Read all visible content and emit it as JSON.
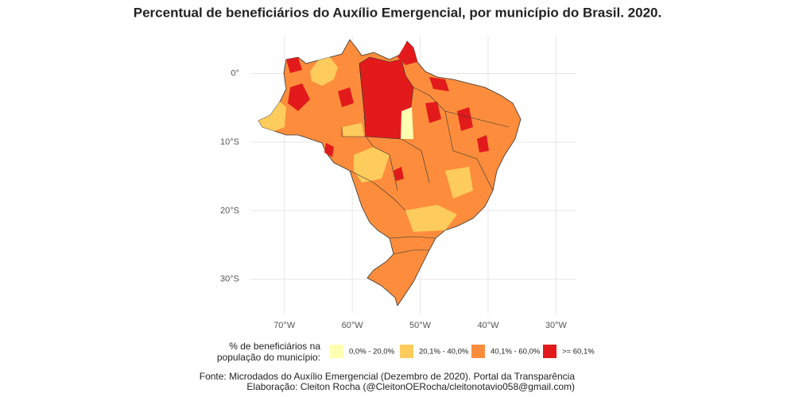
{
  "map": {
    "title": "Percentual de beneficiários do Auxílio Emergencial, por município do Brasil. 2020.",
    "xlim": [
      -75,
      -27
    ],
    "ylim": [
      -35,
      5.5
    ],
    "xticks": [
      {
        "value": -70,
        "label": "70°W"
      },
      {
        "value": -60,
        "label": "60°W"
      },
      {
        "value": -50,
        "label": "50°W"
      },
      {
        "value": -40,
        "label": "40°W"
      },
      {
        "value": -30,
        "label": "30°W"
      }
    ],
    "yticks": [
      {
        "value": 0,
        "label": "0°"
      },
      {
        "value": -10,
        "label": "10°S"
      },
      {
        "value": -20,
        "label": "20°S"
      },
      {
        "value": -30,
        "label": "30°S"
      }
    ],
    "grid": true,
    "legend": {
      "title": [
        "% de beneficiários na",
        "população do município:"
      ],
      "items": [
        {
          "name": "0,0% - 20,0%",
          "color": "#ffffb2"
        },
        {
          "name": "20,1% - 40,0%",
          "color": "#fecc5c"
        },
        {
          "name": "40,1% - 60,0%",
          "color": "#fd8d3c"
        },
        {
          "name": ">= 60,1%",
          "color": "#e31a1c"
        }
      ]
    },
    "caption": [
      "Fonte: Microdados do Auxílio Emergencial (Dezembro de 2020). Portal da Transparência",
      "Elaboração: Cleiton Rocha (@CleitonOERocha/cleitonotavio058@gmail.com)"
    ]
  }
}
